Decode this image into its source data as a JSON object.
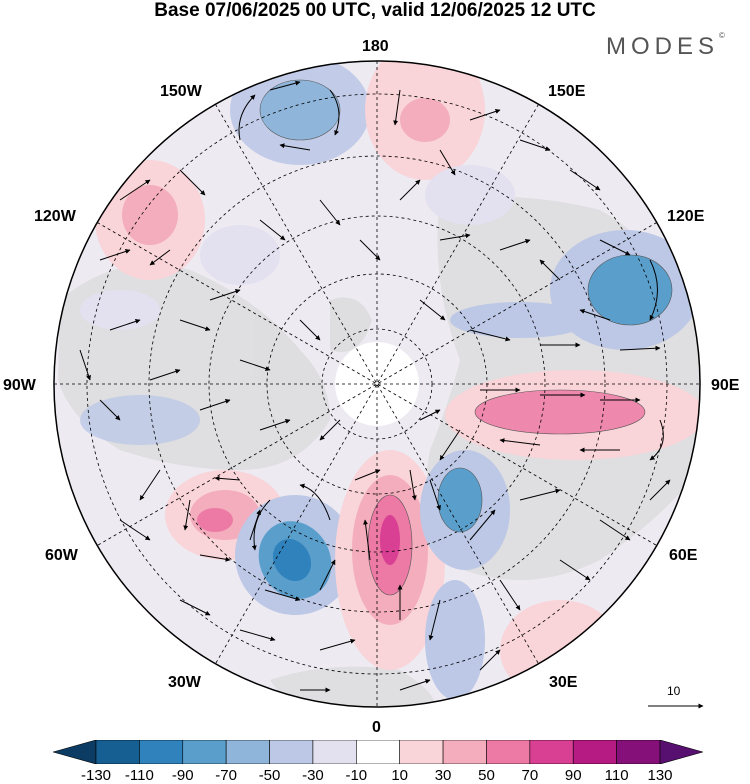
{
  "title": "Base 07/06/2025 00 UTC, valid 12/06/2025 12 UTC",
  "brand": "MODES",
  "brand_mark": "©",
  "longitude_labels": {
    "north": "180",
    "nne": "150E",
    "ene": "120E",
    "east": "90E",
    "ese": "60E",
    "sse": "30E",
    "south": "0",
    "ssw": "30W",
    "wsw": "60W",
    "west": "90W",
    "wnw": "120W",
    "nnw": "150W"
  },
  "reference_vector": {
    "label": "10"
  },
  "colorbar": {
    "ticks": [
      "-130",
      "-110",
      "-90",
      "-70",
      "-50",
      "-30",
      "-10",
      "10",
      "30",
      "50",
      "70",
      "90",
      "110",
      "130"
    ],
    "colors": [
      "#0c3c63",
      "#155f93",
      "#2f82bb",
      "#5a9fcc",
      "#8fb5da",
      "#bcc8e6",
      "#e3e0f0",
      "#ffffff",
      "#f9d4d8",
      "#f3adbd",
      "#ec7aa4",
      "#d93f93",
      "#b51b83",
      "#86107a",
      "#57106f"
    ]
  },
  "colors": {
    "positive_anomaly": "#ec7aa4",
    "negative_anomaly": "#5a9fcc",
    "land": "#dcdcdc",
    "ocean": "#ffffff"
  },
  "icons": [
    "wind-vector-arrow",
    "reference-arrow"
  ]
}
